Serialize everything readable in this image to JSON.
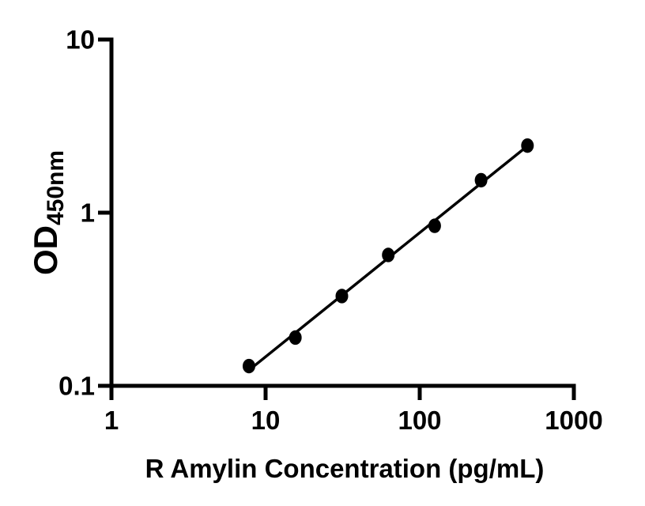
{
  "figure": {
    "background": "#ffffff",
    "foreground": "#000000"
  },
  "chart_data": {
    "type": "scatter",
    "title": "",
    "xlabel": "R Amylin Concentration (pg/mL)",
    "ylabel_main": "OD",
    "ylabel_sub": "450nm",
    "x_scale": "log10",
    "y_scale": "log10",
    "xlim": [
      1,
      1000
    ],
    "ylim": [
      0.1,
      10
    ],
    "x_ticks": [
      1,
      10,
      100,
      1000
    ],
    "x_tick_labels": [
      "1",
      "10",
      "100",
      "1000"
    ],
    "y_ticks": [
      0.1,
      1,
      10
    ],
    "y_tick_labels": [
      "0.1",
      "1",
      "10"
    ],
    "grid": false,
    "legend": false,
    "marker": {
      "shape": "ellipse",
      "color": "#000000"
    },
    "trend_line": {
      "type": "linear-fit-loglog",
      "color": "#000000"
    },
    "points": [
      {
        "x": 7.8,
        "y": 0.13
      },
      {
        "x": 15.6,
        "y": 0.19
      },
      {
        "x": 31.25,
        "y": 0.33
      },
      {
        "x": 62.5,
        "y": 0.57
      },
      {
        "x": 125,
        "y": 0.84
      },
      {
        "x": 250,
        "y": 1.54
      },
      {
        "x": 500,
        "y": 2.44
      }
    ]
  }
}
